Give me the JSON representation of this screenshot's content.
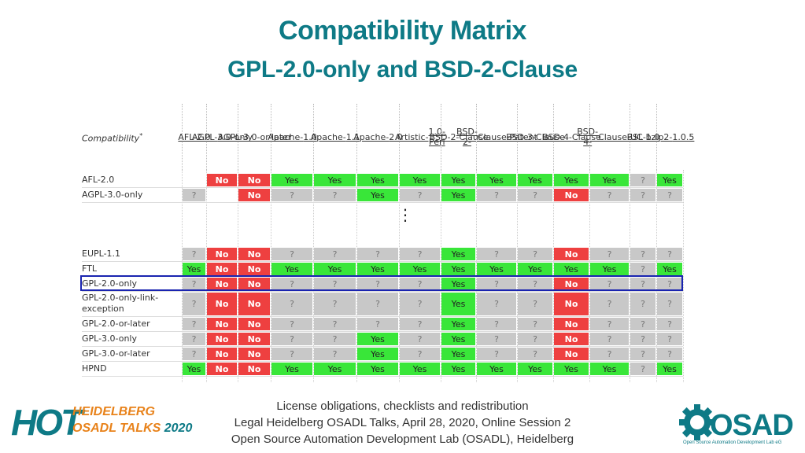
{
  "title": "Compatibility Matrix",
  "subtitle": "GPL-2.0-only and BSD-2-Clause",
  "matrix": {
    "corner_label": "Compatibility",
    "corner_mark": "*",
    "columns": [
      {
        "lines": [
          "AFL-",
          "2.0"
        ]
      },
      {
        "lines": [
          "AGPL-",
          "3.0-",
          "only"
        ]
      },
      {
        "lines": [
          "AGPL-",
          "3.0-",
          "or-",
          "later"
        ]
      },
      {
        "lines": [
          "Apache-",
          "1.0"
        ]
      },
      {
        "lines": [
          "Apache-",
          "1.1"
        ]
      },
      {
        "lines": [
          "Apache-",
          "2.0"
        ]
      },
      {
        "lines": [
          "Artistic-",
          "1.0-Perl"
        ]
      },
      {
        "lines": [
          "BSD-",
          "2-",
          "Clause"
        ]
      },
      {
        "lines": [
          "BSD-2-",
          "Clause-",
          "Patent"
        ]
      },
      {
        "lines": [
          "BSD-",
          "3-",
          "Clause"
        ]
      },
      {
        "lines": [
          "BSD-",
          "4-",
          "Clause"
        ]
      },
      {
        "lines": [
          "BSD-4-",
          "Clause-",
          "UC"
        ]
      },
      {
        "lines": [
          "BSL-",
          "1.0"
        ]
      },
      {
        "lines": [
          "bzip2-",
          "1.0.5"
        ]
      }
    ],
    "rows_top": [
      {
        "label": "AFL-2.0",
        "cells": [
          "",
          "No",
          "No",
          "Yes",
          "Yes",
          "Yes",
          "Yes",
          "Yes",
          "Yes",
          "Yes",
          "Yes",
          "Yes",
          "?",
          "Yes"
        ]
      },
      {
        "label": "AGPL-3.0-only",
        "cells": [
          "?",
          "",
          "No",
          "?",
          "?",
          "Yes",
          "?",
          "Yes",
          "?",
          "?",
          "No",
          "?",
          "?",
          "?"
        ]
      }
    ],
    "ellipsis": "⋮",
    "rows_bottom": [
      {
        "label": "EUPL-1.1",
        "cells": [
          "?",
          "No",
          "No",
          "?",
          "?",
          "?",
          "?",
          "Yes",
          "?",
          "?",
          "No",
          "?",
          "?",
          "?"
        ]
      },
      {
        "label": "FTL",
        "cells": [
          "Yes",
          "No",
          "No",
          "Yes",
          "Yes",
          "Yes",
          "Yes",
          "Yes",
          "Yes",
          "Yes",
          "Yes",
          "Yes",
          "?",
          "Yes"
        ]
      },
      {
        "label": "GPL-2.0-only",
        "cells": [
          "?",
          "No",
          "No",
          "?",
          "?",
          "?",
          "?",
          "Yes",
          "?",
          "?",
          "No",
          "?",
          "?",
          "?"
        ]
      },
      {
        "label": "GPL-2.0-only-link-exception",
        "label_lines": [
          "GPL-2.0-only-link-",
          "exception"
        ],
        "cells": [
          "?",
          "No",
          "No",
          "?",
          "?",
          "?",
          "?",
          "Yes",
          "?",
          "?",
          "No",
          "?",
          "?",
          "?"
        ]
      },
      {
        "label": "GPL-2.0-or-later",
        "cells": [
          "?",
          "No",
          "No",
          "?",
          "?",
          "?",
          "?",
          "Yes",
          "?",
          "?",
          "No",
          "?",
          "?",
          "?"
        ]
      },
      {
        "label": "GPL-3.0-only",
        "cells": [
          "?",
          "No",
          "No",
          "?",
          "?",
          "Yes",
          "?",
          "Yes",
          "?",
          "?",
          "No",
          "?",
          "?",
          "?"
        ]
      },
      {
        "label": "GPL-3.0-or-later",
        "cells": [
          "?",
          "No",
          "No",
          "?",
          "?",
          "Yes",
          "?",
          "Yes",
          "?",
          "?",
          "No",
          "?",
          "?",
          "?"
        ]
      },
      {
        "label": "HPND",
        "cells": [
          "Yes",
          "No",
          "No",
          "Yes",
          "Yes",
          "Yes",
          "Yes",
          "Yes",
          "Yes",
          "Yes",
          "Yes",
          "Yes",
          "?",
          "Yes"
        ]
      }
    ],
    "highlighted_row": "GPL-2.0-only"
  },
  "footer": {
    "line1": "License obligations, checklists and redistribution",
    "line2": "Legal Heidelberg OSADL Talks, April 28, 2020, Online Session 2",
    "line3": "Open Source Automation Development Lab (OSADL), Heidelberg"
  },
  "logo_left": {
    "big": "HOT",
    "line1": "HEIDELBERG",
    "line2_a": "OSADL TALKS",
    "line2_b": "2020"
  },
  "logo_right": {
    "name": "OSADL",
    "tagline": "Open Source Automation Development Lab eG"
  },
  "colors": {
    "accent": "#0e7a86",
    "yes": "#39e639",
    "no": "#ee4040",
    "unknown": "#c8c8c8",
    "highlight": "#1a24b0",
    "logo_orange": "#e8821a"
  }
}
